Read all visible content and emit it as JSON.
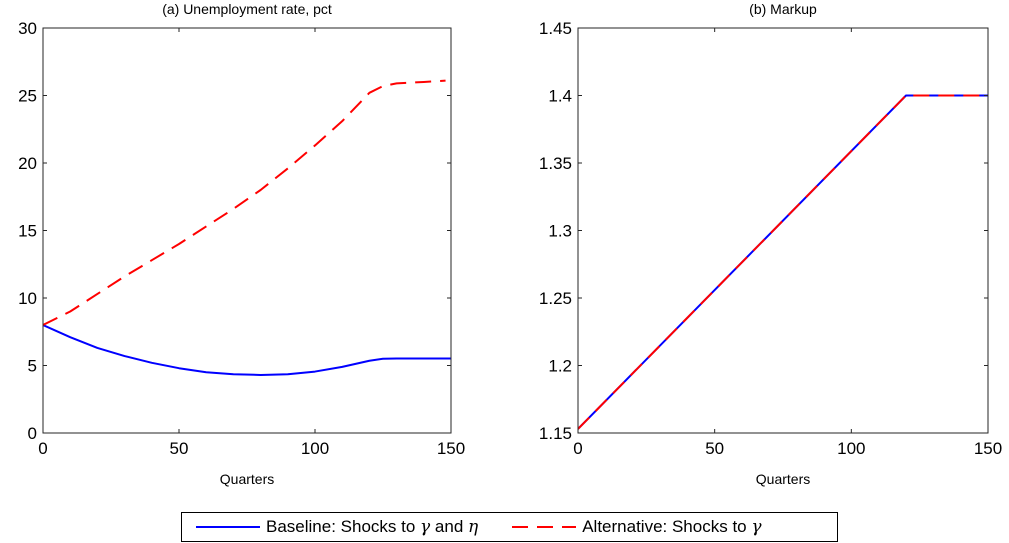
{
  "legend": {
    "baseline": {
      "prefix": "Baseline: Shocks to ",
      "g1": "γ",
      "mid": " and ",
      "g2": "η"
    },
    "alternative": {
      "prefix": "Alternative: Shocks to ",
      "g1": "γ"
    }
  },
  "colors": {
    "baseline": "#0000ff",
    "alternative": "#ff0000"
  },
  "chart_data": [
    {
      "type": "line",
      "title": "(a) Unemployment rate, pct",
      "xlabel": "Quarters",
      "ylabel": "",
      "xlim": [
        0,
        150
      ],
      "ylim": [
        0,
        30
      ],
      "xticks": [
        0,
        50,
        100,
        150
      ],
      "yticks": [
        0,
        5,
        10,
        15,
        20,
        25,
        30
      ],
      "grid": false,
      "series": [
        {
          "name": "Baseline: Shocks to γ and η",
          "style": "solid",
          "x": [
            0,
            10,
            20,
            30,
            40,
            50,
            60,
            70,
            80,
            90,
            100,
            110,
            120,
            125,
            130,
            140,
            150
          ],
          "y": [
            8.0,
            7.1,
            6.3,
            5.7,
            5.2,
            4.8,
            4.5,
            4.35,
            4.3,
            4.35,
            4.55,
            4.9,
            5.35,
            5.5,
            5.52,
            5.52,
            5.52
          ]
        },
        {
          "name": "Alternative: Shocks to γ",
          "style": "dashed",
          "x": [
            0,
            10,
            20,
            30,
            40,
            50,
            60,
            70,
            80,
            90,
            100,
            110,
            120,
            125,
            130,
            140,
            148
          ],
          "y": [
            8.0,
            9.0,
            10.3,
            11.6,
            12.8,
            14.0,
            15.3,
            16.6,
            18.0,
            19.6,
            21.3,
            23.1,
            25.2,
            25.7,
            25.9,
            26.0,
            26.1
          ]
        }
      ]
    },
    {
      "type": "line",
      "title": "(b) Markup",
      "xlabel": "Quarters",
      "ylabel": "",
      "xlim": [
        0,
        150
      ],
      "ylim": [
        1.15,
        1.45
      ],
      "xticks": [
        0,
        50,
        100,
        150
      ],
      "yticks": [
        1.15,
        1.2,
        1.25,
        1.3,
        1.35,
        1.4,
        1.45
      ],
      "ytick_labels": [
        "1.15",
        "1.2",
        "1.25",
        "1.3",
        "1.35",
        "1.4",
        "1.45"
      ],
      "grid": false,
      "series": [
        {
          "name": "Baseline: Shocks to γ and η",
          "style": "solid",
          "x": [
            0,
            120,
            150
          ],
          "y": [
            1.153,
            1.4,
            1.4
          ]
        },
        {
          "name": "Alternative: Shocks to γ",
          "style": "dashed",
          "x": [
            0,
            120,
            150
          ],
          "y": [
            1.153,
            1.4,
            1.4
          ]
        }
      ]
    }
  ]
}
